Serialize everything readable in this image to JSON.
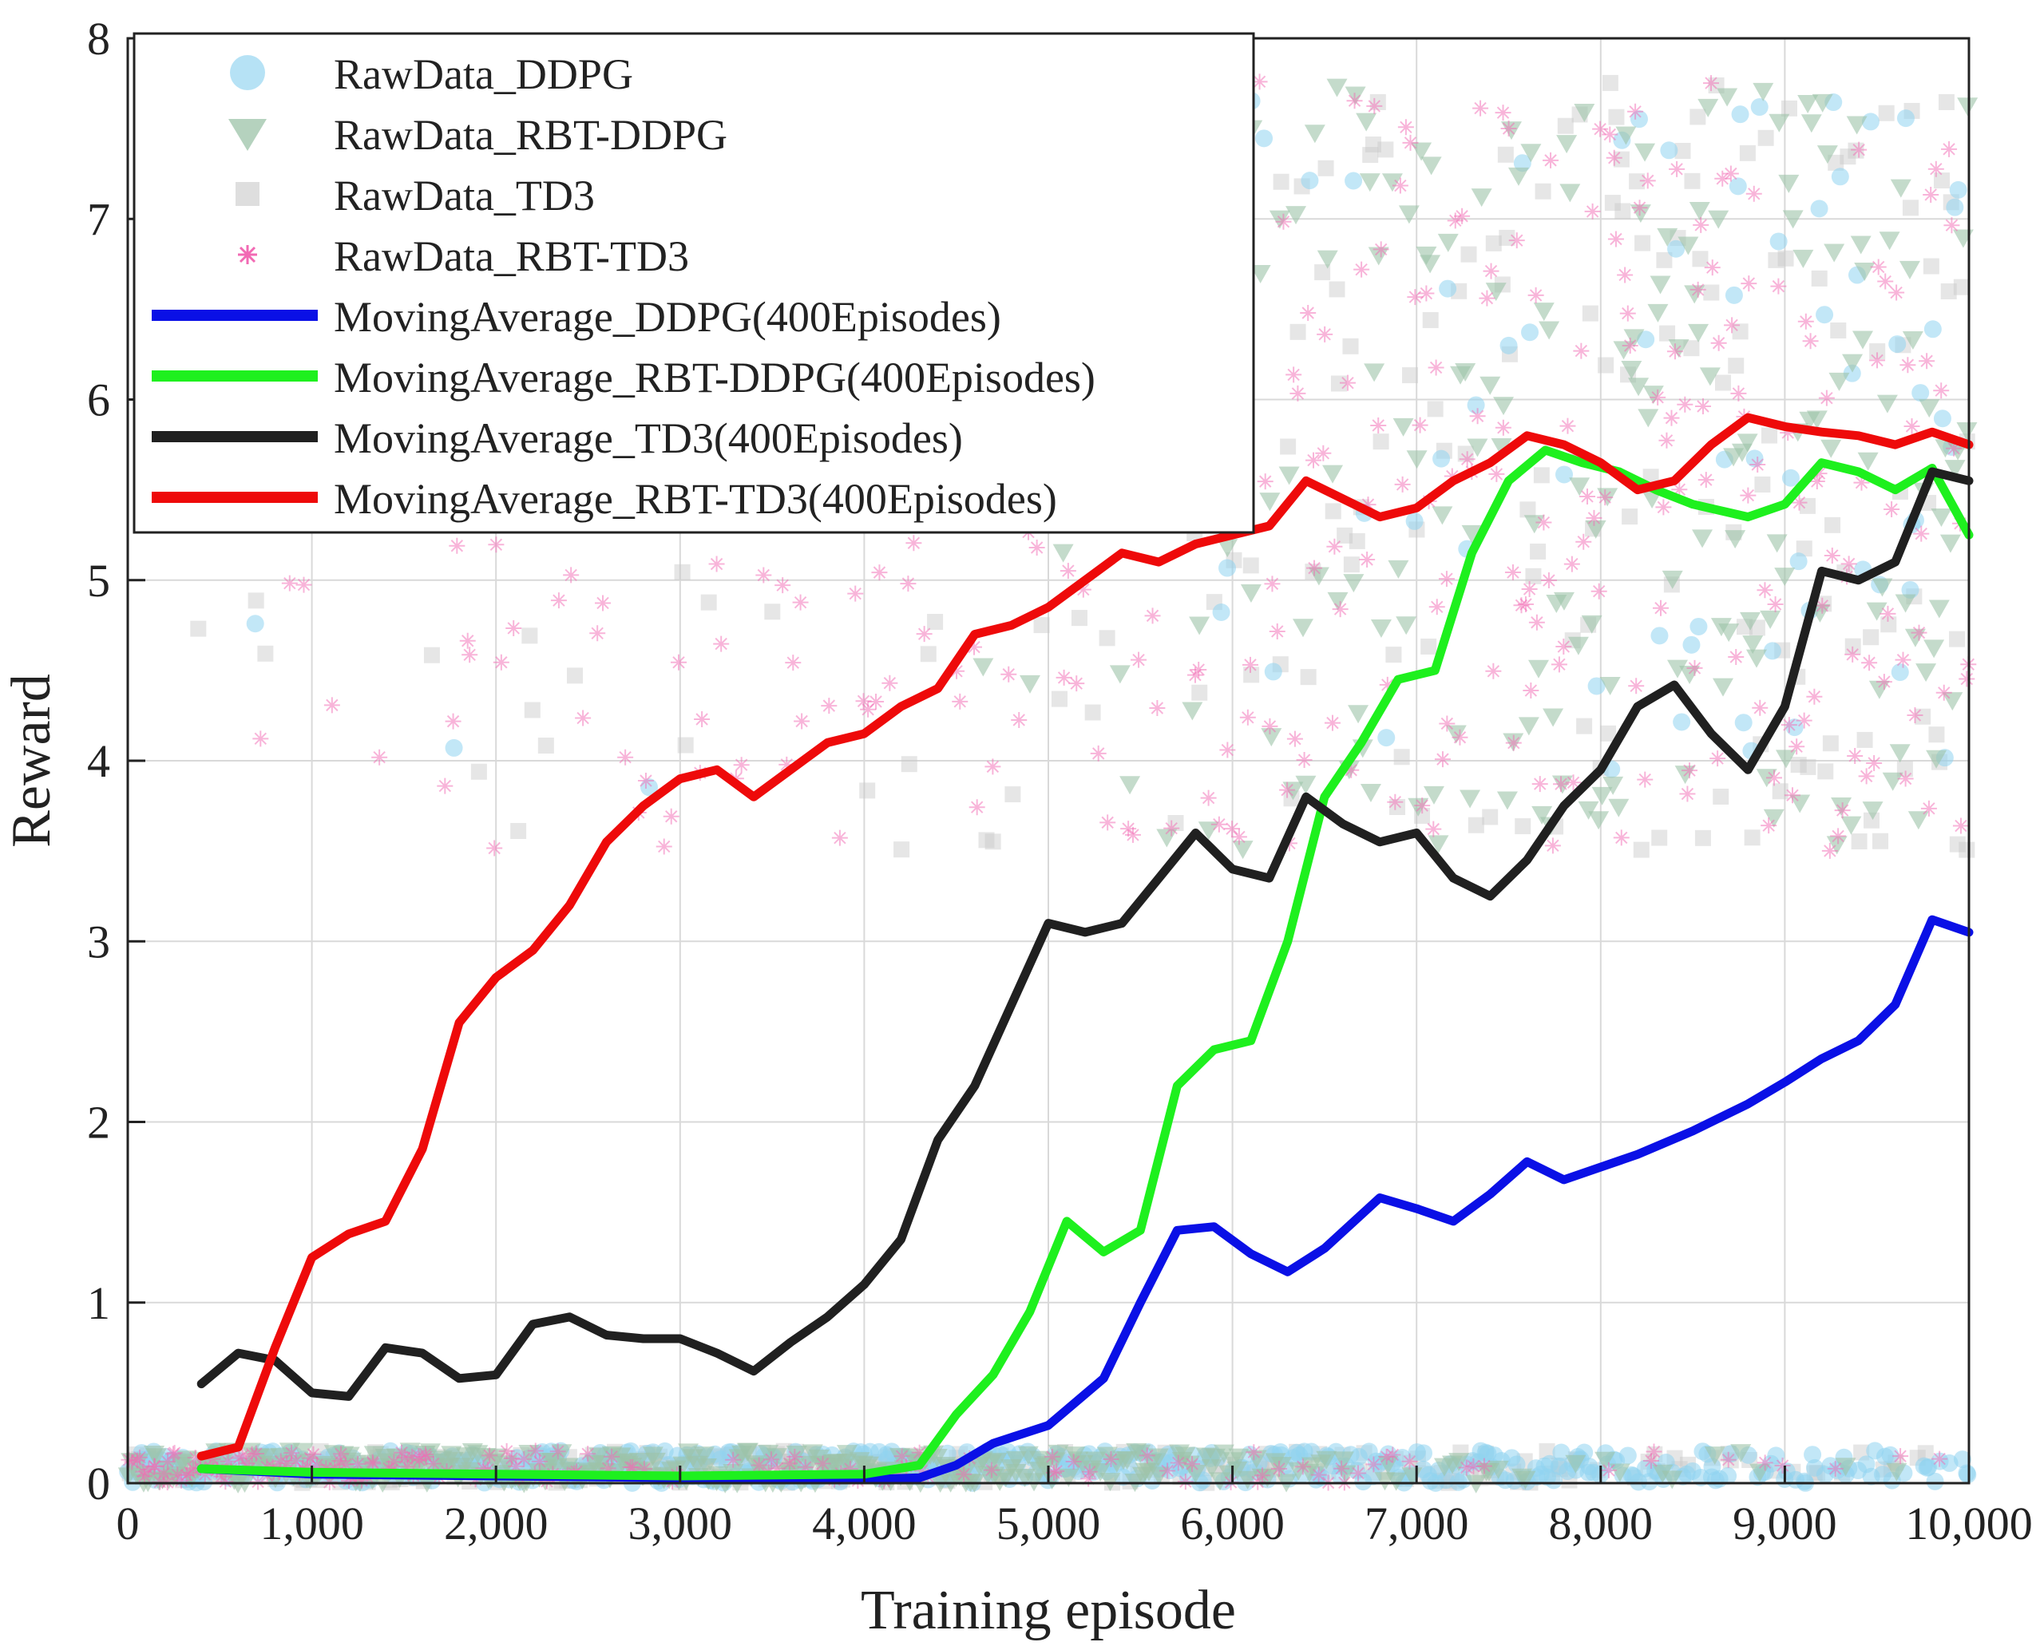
{
  "chart_data": {
    "type": "line",
    "title": "",
    "xlabel": "Training episode",
    "ylabel": "Reward",
    "xlim": [
      0,
      10000
    ],
    "ylim": [
      0,
      8
    ],
    "grid": true,
    "legend_position": "top-left",
    "x_ticks": [
      0,
      1000,
      2000,
      3000,
      4000,
      5000,
      6000,
      7000,
      8000,
      9000,
      10000
    ],
    "x_tick_labels": [
      "0",
      "1,000",
      "2,000",
      "3,000",
      "4,000",
      "5,000",
      "6,000",
      "7,000",
      "8,000",
      "9,000",
      "10,000"
    ],
    "y_ticks": [
      0,
      1,
      2,
      3,
      4,
      5,
      6,
      7,
      8
    ],
    "y_tick_labels": [
      "0",
      "1",
      "2",
      "3",
      "4",
      "5",
      "6",
      "7",
      "8"
    ],
    "raw_series": [
      {
        "name": "RawData_DDPG",
        "marker": "circle",
        "color": "#8fd3f0"
      },
      {
        "name": "RawData_RBT-DDPG",
        "marker": "triangle-down",
        "color": "#9cc3a8"
      },
      {
        "name": "RawData_TD3",
        "marker": "square",
        "color": "#c8c8c8"
      },
      {
        "name": "RawData_RBT-TD3",
        "marker": "asterisk",
        "color": "#f26ab4"
      }
    ],
    "series": [
      {
        "name": "MovingAverage_DDPG(400Episodes)",
        "color": "#0a10e6",
        "x": [
          400,
          1000,
          2000,
          3000,
          4000,
          4300,
          4500,
          4700,
          5000,
          5300,
          5500,
          5700,
          5900,
          6100,
          6300,
          6500,
          6800,
          7000,
          7200,
          7400,
          7600,
          7800,
          8000,
          8200,
          8500,
          8800,
          9000,
          9200,
          9400,
          9600,
          9800,
          10000
        ],
        "values": [
          0.08,
          0.05,
          0.04,
          0.03,
          0.02,
          0.03,
          0.1,
          0.22,
          0.32,
          0.58,
          1.0,
          1.4,
          1.42,
          1.27,
          1.17,
          1.3,
          1.58,
          1.52,
          1.45,
          1.6,
          1.78,
          1.68,
          1.75,
          1.82,
          1.95,
          2.1,
          2.22,
          2.35,
          2.45,
          2.65,
          3.12,
          3.05
        ]
      },
      {
        "name": "MovingAverage_RBT-DDPG(400Episodes)",
        "color": "#1ef01e",
        "x": [
          400,
          1000,
          2000,
          3000,
          4000,
          4300,
          4500,
          4700,
          4900,
          5100,
          5300,
          5500,
          5700,
          5900,
          6100,
          6300,
          6500,
          6700,
          6900,
          7100,
          7300,
          7500,
          7700,
          7900,
          8100,
          8300,
          8500,
          8800,
          9000,
          9200,
          9400,
          9600,
          9800,
          10000
        ],
        "values": [
          0.08,
          0.06,
          0.05,
          0.04,
          0.05,
          0.1,
          0.38,
          0.6,
          0.95,
          1.45,
          1.28,
          1.4,
          2.2,
          2.4,
          2.45,
          3.0,
          3.8,
          4.1,
          4.45,
          4.5,
          5.15,
          5.55,
          5.72,
          5.65,
          5.6,
          5.5,
          5.42,
          5.35,
          5.42,
          5.65,
          5.6,
          5.5,
          5.62,
          5.25
        ]
      },
      {
        "name": "MovingAverage_TD3(400Episodes)",
        "color": "#202020",
        "x": [
          400,
          600,
          800,
          1000,
          1200,
          1400,
          1600,
          1800,
          2000,
          2200,
          2400,
          2600,
          2800,
          3000,
          3200,
          3400,
          3600,
          3800,
          4000,
          4200,
          4400,
          4600,
          4800,
          5000,
          5200,
          5400,
          5600,
          5800,
          6000,
          6200,
          6400,
          6600,
          6800,
          7000,
          7200,
          7400,
          7600,
          7800,
          8000,
          8200,
          8400,
          8600,
          8800,
          9000,
          9200,
          9400,
          9600,
          9800,
          10000
        ],
        "values": [
          0.55,
          0.72,
          0.68,
          0.5,
          0.48,
          0.75,
          0.72,
          0.58,
          0.6,
          0.88,
          0.92,
          0.82,
          0.8,
          0.8,
          0.72,
          0.62,
          0.78,
          0.92,
          1.1,
          1.35,
          1.9,
          2.2,
          2.65,
          3.1,
          3.05,
          3.1,
          3.35,
          3.6,
          3.4,
          3.35,
          3.8,
          3.65,
          3.55,
          3.6,
          3.35,
          3.25,
          3.45,
          3.75,
          3.95,
          4.3,
          4.42,
          4.15,
          3.95,
          4.3,
          5.05,
          5.0,
          5.1,
          5.6,
          5.55
        ]
      },
      {
        "name": "MovingAverage_RBT-TD3(400Episodes)",
        "color": "#ee0a0a",
        "x": [
          400,
          600,
          800,
          1000,
          1200,
          1400,
          1600,
          1800,
          2000,
          2200,
          2400,
          2600,
          2800,
          3000,
          3200,
          3400,
          3600,
          3800,
          4000,
          4200,
          4400,
          4600,
          4800,
          5000,
          5200,
          5400,
          5600,
          5800,
          6000,
          6200,
          6400,
          6600,
          6800,
          7000,
          7200,
          7400,
          7600,
          7800,
          8000,
          8200,
          8400,
          8600,
          8800,
          9000,
          9200,
          9400,
          9600,
          9800,
          10000
        ],
        "values": [
          0.15,
          0.2,
          0.75,
          1.25,
          1.38,
          1.45,
          1.85,
          2.55,
          2.8,
          2.95,
          3.2,
          3.55,
          3.75,
          3.9,
          3.95,
          3.8,
          3.95,
          4.1,
          4.15,
          4.3,
          4.4,
          4.7,
          4.75,
          4.85,
          5.0,
          5.15,
          5.1,
          5.2,
          5.25,
          5.3,
          5.55,
          5.45,
          5.35,
          5.4,
          5.55,
          5.65,
          5.8,
          5.75,
          5.65,
          5.5,
          5.55,
          5.75,
          5.9,
          5.85,
          5.82,
          5.8,
          5.75,
          5.82,
          5.75
        ]
      }
    ]
  }
}
